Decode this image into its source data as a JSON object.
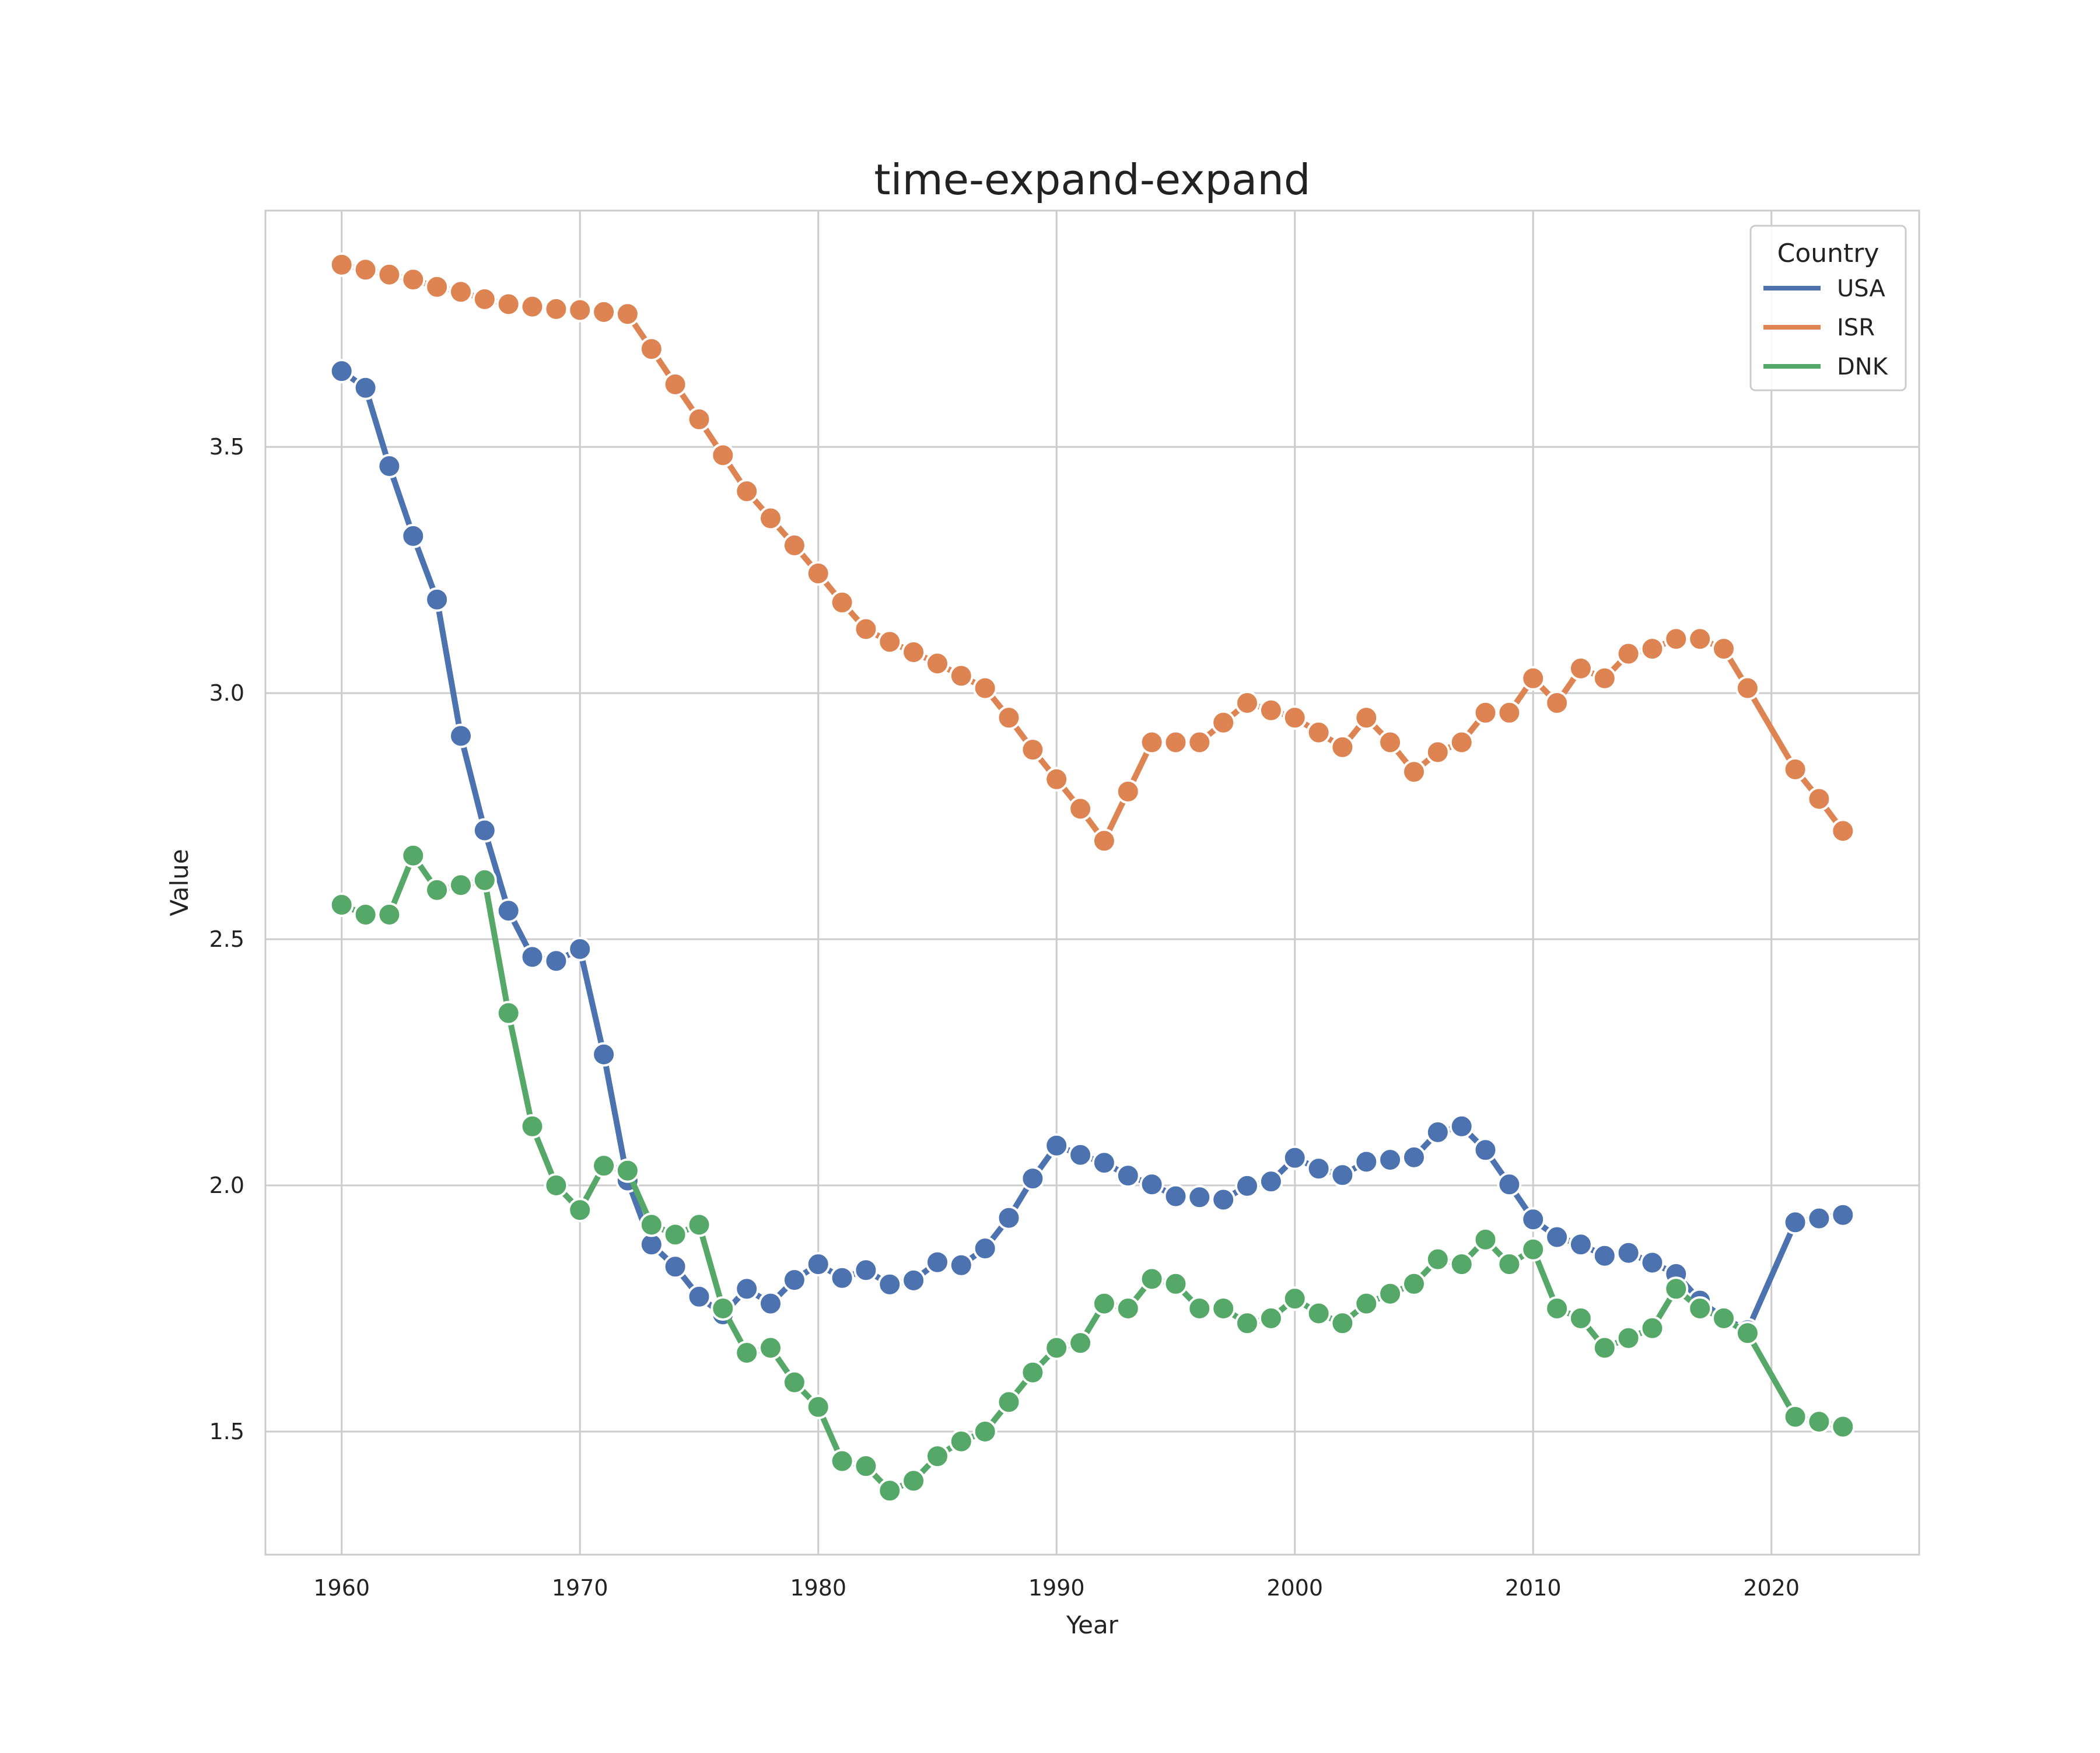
{
  "chart_data": {
    "type": "line",
    "title": "time-expand-expand",
    "xlabel": "Year",
    "ylabel": "Value",
    "xlim": [
      1956.8,
      2026.2
    ],
    "ylim": [
      1.25,
      3.98
    ],
    "x_ticks": [
      1960,
      1970,
      1980,
      1990,
      2000,
      2010,
      2020
    ],
    "y_ticks": [
      1.5,
      2.0,
      2.5,
      3.0,
      3.5
    ],
    "y_tick_labels": [
      "1.5",
      "2.0",
      "2.5",
      "3.0",
      "3.5"
    ],
    "grid": true,
    "legend": {
      "title": "Country",
      "position": "top-right"
    },
    "series": [
      {
        "name": "USA",
        "color": "#4c72b0",
        "x": [
          1960,
          1961,
          1962,
          1963,
          1964,
          1965,
          1966,
          1967,
          1968,
          1969,
          1970,
          1971,
          1972,
          1973,
          1974,
          1975,
          1976,
          1977,
          1978,
          1979,
          1980,
          1981,
          1982,
          1983,
          1984,
          1985,
          1986,
          1987,
          1988,
          1989,
          1990,
          1991,
          1992,
          1993,
          1994,
          1995,
          1996,
          1997,
          1998,
          1999,
          2000,
          2001,
          2002,
          2003,
          2004,
          2005,
          2006,
          2007,
          2008,
          2009,
          2010,
          2011,
          2012,
          2013,
          2014,
          2015,
          2016,
          2017,
          2018,
          2019,
          2021,
          2022,
          2023
        ],
        "y": [
          3.654,
          3.62,
          3.461,
          3.319,
          3.19,
          2.913,
          2.721,
          2.558,
          2.464,
          2.456,
          2.48,
          2.266,
          2.01,
          1.88,
          1.835,
          1.774,
          1.738,
          1.79,
          1.76,
          1.808,
          1.84,
          1.812,
          1.828,
          1.799,
          1.807,
          1.844,
          1.838,
          1.872,
          1.934,
          2.014,
          2.081,
          2.062,
          2.046,
          2.02,
          2.002,
          1.978,
          1.976,
          1.971,
          1.999,
          2.008,
          2.056,
          2.034,
          2.021,
          2.048,
          2.052,
          2.057,
          2.108,
          2.12,
          2.072,
          2.002,
          1.931,
          1.895,
          1.88,
          1.857,
          1.863,
          1.843,
          1.82,
          1.766,
          1.73,
          1.706,
          1.925,
          1.933,
          1.94
        ]
      },
      {
        "name": "ISR",
        "color": "#dd8452",
        "x": [
          1960,
          1961,
          1962,
          1963,
          1964,
          1965,
          1966,
          1967,
          1968,
          1969,
          1970,
          1971,
          1972,
          1973,
          1974,
          1975,
          1976,
          1977,
          1978,
          1979,
          1980,
          1981,
          1982,
          1983,
          1984,
          1985,
          1986,
          1987,
          1988,
          1989,
          1990,
          1991,
          1992,
          1993,
          1994,
          1995,
          1996,
          1997,
          1998,
          1999,
          2000,
          2001,
          2002,
          2003,
          2004,
          2005,
          2006,
          2007,
          2008,
          2009,
          2010,
          2011,
          2012,
          2013,
          2014,
          2015,
          2016,
          2017,
          2018,
          2019,
          2021,
          2022,
          2023
        ],
        "y": [
          3.87,
          3.86,
          3.85,
          3.84,
          3.825,
          3.815,
          3.8,
          3.79,
          3.785,
          3.78,
          3.778,
          3.774,
          3.77,
          3.699,
          3.627,
          3.556,
          3.483,
          3.41,
          3.355,
          3.3,
          3.243,
          3.184,
          3.13,
          3.104,
          3.083,
          3.06,
          3.035,
          3.01,
          2.95,
          2.885,
          2.825,
          2.765,
          2.7,
          2.8,
          2.9,
          2.9,
          2.9,
          2.94,
          2.98,
          2.965,
          2.95,
          2.92,
          2.89,
          2.95,
          2.9,
          2.84,
          2.88,
          2.9,
          2.96,
          2.96,
          3.03,
          2.98,
          3.05,
          3.03,
          3.08,
          3.09,
          3.11,
          3.11,
          3.09,
          3.01,
          2.845,
          2.785,
          2.72
        ]
      },
      {
        "name": "DNK",
        "color": "#55a868",
        "x": [
          1960,
          1961,
          1962,
          1963,
          1964,
          1965,
          1966,
          1967,
          1968,
          1969,
          1970,
          1971,
          1972,
          1973,
          1974,
          1975,
          1976,
          1977,
          1978,
          1979,
          1980,
          1981,
          1982,
          1983,
          1984,
          1985,
          1986,
          1987,
          1988,
          1989,
          1990,
          1991,
          1992,
          1993,
          1994,
          1995,
          1996,
          1997,
          1998,
          1999,
          2000,
          2001,
          2002,
          2003,
          2004,
          2005,
          2006,
          2007,
          2008,
          2009,
          2010,
          2011,
          2012,
          2013,
          2014,
          2015,
          2016,
          2017,
          2018,
          2019,
          2021,
          2022,
          2023
        ],
        "y": [
          2.57,
          2.55,
          2.55,
          2.67,
          2.6,
          2.61,
          2.62,
          2.35,
          2.12,
          2.0,
          1.95,
          2.04,
          2.03,
          1.92,
          1.9,
          1.92,
          1.75,
          1.66,
          1.67,
          1.6,
          1.55,
          1.44,
          1.43,
          1.38,
          1.4,
          1.45,
          1.48,
          1.5,
          1.56,
          1.62,
          1.67,
          1.68,
          1.76,
          1.75,
          1.81,
          1.8,
          1.75,
          1.75,
          1.72,
          1.73,
          1.77,
          1.74,
          1.72,
          1.76,
          1.78,
          1.8,
          1.85,
          1.84,
          1.89,
          1.84,
          1.87,
          1.75,
          1.73,
          1.67,
          1.69,
          1.71,
          1.79,
          1.75,
          1.73,
          1.7,
          1.53,
          1.52,
          1.51
        ]
      }
    ]
  }
}
